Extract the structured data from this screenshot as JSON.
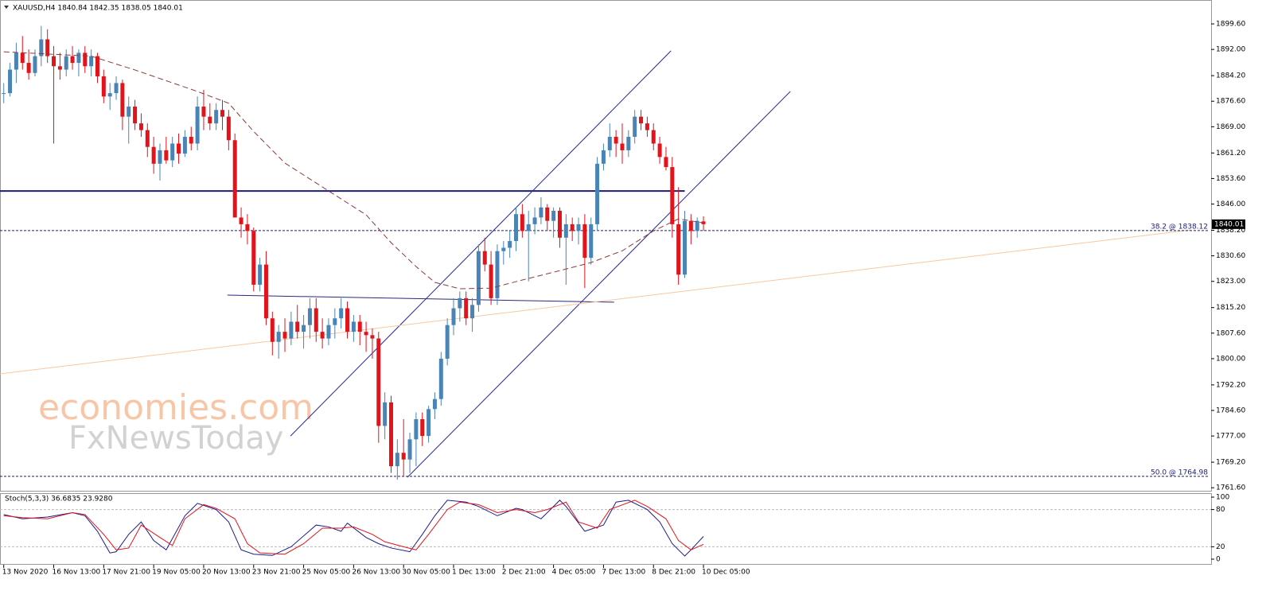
{
  "chart_data": {
    "type": "candlestick",
    "title": "XAUUSD,H4 1840.84 1842.35 1838.05 1840.01",
    "categories": [
      "13 Nov 2020",
      null,
      null,
      null,
      null,
      null,
      null,
      null,
      "16 Nov 13:00",
      null,
      null,
      null,
      null,
      null,
      null,
      null,
      "17 Nov 21:00",
      null,
      null,
      null,
      null,
      null,
      null,
      null,
      "19 Nov 05:00",
      null,
      null,
      null,
      null,
      null,
      null,
      null,
      "20 Nov 13:00",
      null,
      null,
      null,
      null,
      null,
      null,
      null,
      "23 Nov 21:00",
      null,
      null,
      null,
      null,
      null,
      null,
      null,
      "25 Nov 05:00",
      null,
      null,
      null,
      null,
      null,
      null,
      null,
      "26 Nov 13:00",
      null,
      null,
      null,
      null,
      null,
      null,
      null,
      "30 Nov 05:00",
      null,
      null,
      null,
      null,
      null,
      null,
      null,
      "1 Dec 13:00",
      null,
      null,
      null,
      null,
      null,
      null,
      null,
      "2 Dec 21:00",
      null,
      null,
      null,
      null,
      null,
      null,
      null,
      "4 Dec 05:00",
      null,
      null,
      null,
      null,
      null,
      null,
      null,
      "7 Dec 13:00",
      null,
      null,
      null,
      null,
      null,
      null,
      null,
      "8 Dec 21:00",
      null,
      null,
      null,
      null,
      null,
      null,
      null,
      "10 Dec 05:00"
    ],
    "open": [
      1879,
      1879,
      1886,
      1891,
      1888,
      1885,
      1890,
      1895,
      1890,
      1887,
      1886,
      1890,
      1888,
      1891,
      1887,
      1890,
      1884,
      1878,
      1879,
      1882,
      1872,
      1875,
      1870,
      1868,
      1863,
      1858,
      1862,
      1859,
      1864,
      1861,
      1866,
      1864,
      1875,
      1872,
      1870,
      1874,
      1872,
      1865,
      1842,
      1840,
      1838,
      1822,
      1828,
      1812,
      1805,
      1808,
      1806,
      1811,
      1808,
      1810,
      1815,
      1808,
      1806,
      1810,
      1812,
      1815,
      1808,
      1811,
      1808,
      1807,
      1806,
      1780,
      1787,
      1768,
      1772,
      1770,
      1776,
      1782,
      1777,
      1785,
      1788,
      1800,
      1810,
      1815,
      1818,
      1812,
      1816,
      1832,
      1828,
      1818,
      1832,
      1833,
      1835,
      1843,
      1838,
      1840,
      1842,
      1845,
      1841,
      1844,
      1836,
      1840,
      1838,
      1840,
      1830,
      1840,
      1858,
      1862,
      1866,
      1864,
      1862,
      1866,
      1872,
      1870,
      1868,
      1864,
      1860,
      1857,
      1840,
      1825,
      1841,
      1838,
      1840.84
    ],
    "high": [
      1882,
      1888,
      1894,
      1896,
      1892,
      1892,
      1899,
      1898,
      1893,
      1891,
      1892,
      1893,
      1892,
      1893,
      1892,
      1891,
      1886,
      1882,
      1884,
      1883,
      1878,
      1877,
      1873,
      1870,
      1866,
      1864,
      1866,
      1866,
      1867,
      1868,
      1869,
      1878,
      1880,
      1876,
      1876,
      1877,
      1874,
      1867,
      1845,
      1843,
      1839,
      1830,
      1832,
      1814,
      1810,
      1812,
      1814,
      1816,
      1813,
      1818,
      1818,
      1812,
      1812,
      1815,
      1818,
      1817,
      1813,
      1813,
      1811,
      1809,
      1808,
      1790,
      1789,
      1776,
      1782,
      1778,
      1784,
      1784,
      1786,
      1790,
      1802,
      1812,
      1818,
      1820,
      1820,
      1818,
      1834,
      1836,
      1832,
      1834,
      1835,
      1838,
      1845,
      1846,
      1844,
      1845,
      1848,
      1846,
      1845,
      1845,
      1843,
      1842,
      1842,
      1843,
      1842,
      1860,
      1864,
      1870,
      1868,
      1870,
      1868,
      1874,
      1874,
      1872,
      1870,
      1866,
      1863,
      1860,
      1851,
      1844,
      1843,
      1842,
      1842.35
    ],
    "low": [
      1876,
      1878,
      1882,
      1886,
      1883,
      1884,
      1887,
      1888,
      1864,
      1883,
      1884,
      1886,
      1884,
      1885,
      1884,
      1882,
      1876,
      1874,
      1877,
      1868,
      1864,
      1868,
      1866,
      1860,
      1855,
      1853,
      1858,
      1857,
      1858,
      1860,
      1862,
      1862,
      1868,
      1868,
      1868,
      1868,
      1862,
      1842,
      1836,
      1834,
      1820,
      1820,
      1810,
      1801,
      1800,
      1802,
      1804,
      1806,
      1803,
      1806,
      1805,
      1803,
      1804,
      1806,
      1809,
      1806,
      1805,
      1804,
      1802,
      1800,
      1775,
      1776,
      1766,
      1764,
      1765,
      1766,
      1768,
      1774,
      1775,
      1782,
      1786,
      1798,
      1807,
      1811,
      1810,
      1808,
      1814,
      1826,
      1816,
      1816,
      1828,
      1830,
      1832,
      1836,
      1823,
      1837,
      1840,
      1838,
      1836,
      1833,
      1822,
      1835,
      1834,
      1821,
      1828,
      1838,
      1856,
      1860,
      1860,
      1858,
      1860,
      1864,
      1868,
      1866,
      1862,
      1858,
      1856,
      1836,
      1822,
      1824,
      1834,
      1836,
      1838.05
    ],
    "close": [
      1879,
      1886,
      1891,
      1888,
      1885,
      1890,
      1895,
      1890,
      1887,
      1886,
      1890,
      1888,
      1891,
      1887,
      1890,
      1884,
      1878,
      1879,
      1882,
      1872,
      1875,
      1870,
      1868,
      1863,
      1858,
      1862,
      1859,
      1864,
      1861,
      1866,
      1864,
      1875,
      1872,
      1870,
      1874,
      1872,
      1865,
      1842,
      1840,
      1838,
      1822,
      1828,
      1812,
      1805,
      1808,
      1806,
      1811,
      1808,
      1810,
      1815,
      1808,
      1806,
      1810,
      1812,
      1815,
      1808,
      1811,
      1808,
      1807,
      1806,
      1780,
      1787,
      1768,
      1772,
      1770,
      1776,
      1782,
      1777,
      1785,
      1788,
      1800,
      1810,
      1815,
      1818,
      1812,
      1816,
      1832,
      1828,
      1818,
      1832,
      1833,
      1835,
      1843,
      1838,
      1840,
      1842,
      1845,
      1841,
      1844,
      1836,
      1840,
      1838,
      1840,
      1830,
      1840,
      1858,
      1862,
      1866,
      1864,
      1862,
      1866,
      1872,
      1870,
      1868,
      1864,
      1860,
      1857,
      1840,
      1825,
      1841,
      1838,
      1841,
      1840.01
    ],
    "colors": {
      "up": "#4a84b6",
      "down": "#e3131b"
    },
    "xlim": [
      -0.6,
      193
    ],
    "ylim": [
      1760.7,
      1906.0
    ],
    "yticks": [
      {
        "value": 1899.6,
        "label": "1899.60"
      },
      {
        "value": 1892,
        "label": "1892.00"
      },
      {
        "value": 1884.2,
        "label": "1884.20"
      },
      {
        "value": 1876.6,
        "label": "1876.60"
      },
      {
        "value": 1869,
        "label": "1869.00"
      },
      {
        "value": 1861.2,
        "label": "1861.20"
      },
      {
        "value": 1853.6,
        "label": "1853.60"
      },
      {
        "value": 1846,
        "label": "1846.00"
      },
      {
        "value": 1838.2,
        "label": "1838.20"
      },
      {
        "value": 1830.6,
        "label": "1830.60"
      },
      {
        "value": 1823,
        "label": "1823.00"
      },
      {
        "value": 1815.2,
        "label": "1815.20"
      },
      {
        "value": 1807.6,
        "label": "1807.60"
      },
      {
        "value": 1800,
        "label": "1800.00"
      },
      {
        "value": 1792.2,
        "label": "1792.20"
      },
      {
        "value": 1784.6,
        "label": "1784.60"
      },
      {
        "value": 1777,
        "label": "1777.00"
      },
      {
        "value": 1769.2,
        "label": "1769.20"
      },
      {
        "value": 1761.6,
        "label": "1761.60"
      }
    ],
    "moving_average": {
      "color": "#8b3a3a",
      "x": [
        0,
        14,
        21,
        31,
        36,
        40,
        45,
        52,
        58,
        62,
        66,
        69,
        73,
        78,
        83,
        89,
        94,
        99,
        104,
        108,
        112
      ],
      "values": [
        1891.3,
        1890,
        1885.9,
        1879.5,
        1876,
        1867.6,
        1858.2,
        1849.9,
        1842.8,
        1834.5,
        1827.4,
        1822.7,
        1820.8,
        1821,
        1823.4,
        1826.2,
        1828.6,
        1832.1,
        1838,
        1841.6,
        1840.4
      ]
    },
    "trend_lines": [
      {
        "color": "#1c1c7a",
        "width": 2,
        "x": [
          -0.6,
          109
        ],
        "values": [
          1849.9,
          1849.9
        ]
      },
      {
        "color": "#2a2a9a",
        "width": 1,
        "x": [
          45.9,
          106.8
        ],
        "values": [
          1777,
          1891.6
        ]
      },
      {
        "color": "#2a2a9a",
        "width": 1,
        "x": [
          64.6,
          125.9
        ],
        "values": [
          1764.7,
          1879.5
        ]
      },
      {
        "color": "#2a2a7a",
        "width": 1,
        "x": [
          35.8,
          97.7
        ],
        "values": [
          1818.9,
          1816.8
        ]
      },
      {
        "color": "#f8c8a0",
        "width": 1,
        "x": [
          -0.6,
          190
        ],
        "values": [
          1795.5,
          1838.3
        ]
      }
    ],
    "fib_levels": [
      {
        "value": 1838.12,
        "label": "38.2 @ 1838.12"
      },
      {
        "value": 1764.98,
        "label": "50.0 @ 1764.98"
      }
    ],
    "last_price": 1840.01,
    "watermark": [
      "economies.com",
      "FxNewsToday"
    ],
    "indicator": {
      "title": "Stoch(5,3,3) 36.6835 23.9280",
      "ylim": [
        -9,
        106.4
      ],
      "yticks": [
        100,
        80,
        20,
        0
      ],
      "levels": [
        80,
        20
      ],
      "series": [
        {
          "color": "#1c1c8c",
          "x": [
            0,
            3,
            7,
            11,
            13,
            15,
            17,
            18,
            20,
            22,
            24,
            26,
            29,
            31,
            34,
            36,
            38,
            40,
            43,
            46,
            50,
            52,
            54,
            55,
            58,
            60,
            62,
            65,
            67,
            69,
            71,
            74,
            76,
            79,
            82,
            83,
            86,
            89,
            90,
            93,
            96,
            98,
            100,
            103,
            105,
            107,
            109,
            110,
            112
          ],
          "values": [
            72,
            65,
            68,
            75,
            70,
            45,
            10,
            12,
            40,
            60,
            30,
            15,
            70,
            90,
            80,
            60,
            15,
            8,
            6,
            20,
            55,
            52,
            45,
            58,
            35,
            25,
            18,
            12,
            40,
            70,
            95,
            92,
            85,
            70,
            82,
            80,
            65,
            95,
            85,
            45,
            55,
            92,
            95,
            80,
            60,
            25,
            5,
            15,
            36.6835
          ]
        },
        {
          "color": "#e3131b",
          "x": [
            0,
            3,
            7,
            11,
            13,
            16,
            18,
            20,
            22,
            25,
            27,
            29,
            32,
            34,
            37,
            39,
            41,
            45,
            48,
            51,
            54,
            56,
            59,
            61,
            64,
            66,
            68,
            71,
            73,
            76,
            79,
            82,
            85,
            87,
            90,
            92,
            95,
            97,
            101,
            103,
            106,
            108,
            110,
            112
          ],
          "values": [
            70,
            67,
            65,
            75,
            72,
            40,
            15,
            18,
            55,
            35,
            22,
            65,
            88,
            82,
            65,
            25,
            10,
            8,
            25,
            50,
            50,
            52,
            40,
            28,
            20,
            15,
            40,
            80,
            92,
            88,
            75,
            80,
            75,
            80,
            92,
            60,
            50,
            80,
            95,
            85,
            65,
            30,
            15,
            23.928
          ]
        }
      ]
    }
  }
}
